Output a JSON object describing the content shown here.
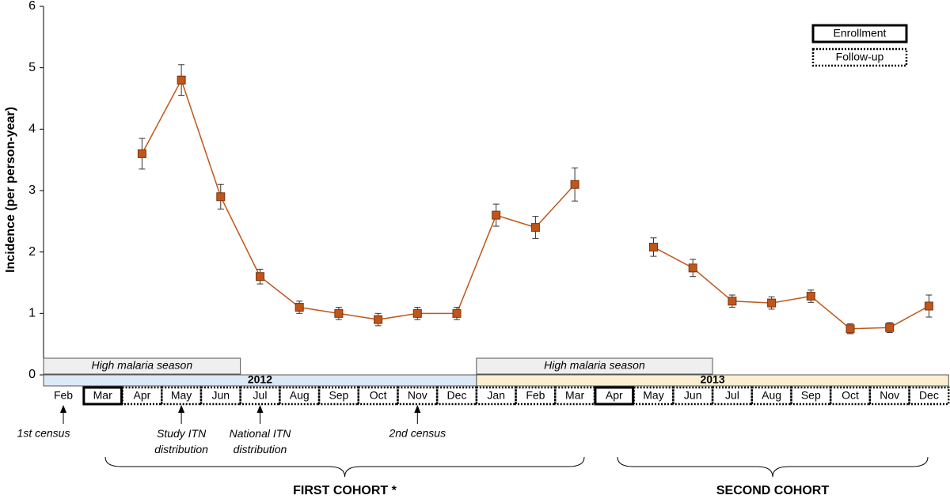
{
  "chart_data": {
    "type": "line",
    "ylabel": "Incidence (per person-year)",
    "ylim": [
      0,
      6
    ],
    "yticks": [
      0,
      1,
      2,
      3,
      4,
      5,
      6
    ],
    "categories": [
      "Feb",
      "Mar",
      "Apr",
      "May",
      "Jun",
      "Jul",
      "Aug",
      "Sep",
      "Oct",
      "Nov",
      "Dec",
      "Jan",
      "Feb",
      "Mar",
      "Apr",
      "May",
      "Jun",
      "Jul",
      "Aug",
      "Sep",
      "Oct",
      "Nov",
      "Dec"
    ],
    "years": [
      "2012",
      "2013"
    ],
    "season_label": "High malaria season",
    "legend": [
      "Enrollment",
      "Follow-up"
    ],
    "series": [
      {
        "color": "#c0561a",
        "values": [
          null,
          null,
          3.6,
          4.8,
          2.9,
          1.6,
          1.1,
          1.0,
          0.9,
          1.0,
          1.0,
          2.6,
          2.4,
          3.1,
          null,
          2.08,
          1.74,
          1.2,
          1.17,
          1.28,
          0.75,
          0.77,
          1.12
        ],
        "errors": [
          null,
          null,
          0.25,
          0.25,
          0.2,
          0.12,
          0.1,
          0.1,
          0.1,
          0.1,
          0.1,
          0.18,
          0.18,
          0.27,
          null,
          0.15,
          0.14,
          0.1,
          0.1,
          0.1,
          0.08,
          0.08,
          0.18
        ]
      }
    ],
    "annotations": [
      "1st census",
      "Study ITN distribution",
      "National ITN distribution",
      "2nd census"
    ],
    "cohorts": [
      "FIRST COHORT *",
      "SECOND COHORT"
    ]
  }
}
